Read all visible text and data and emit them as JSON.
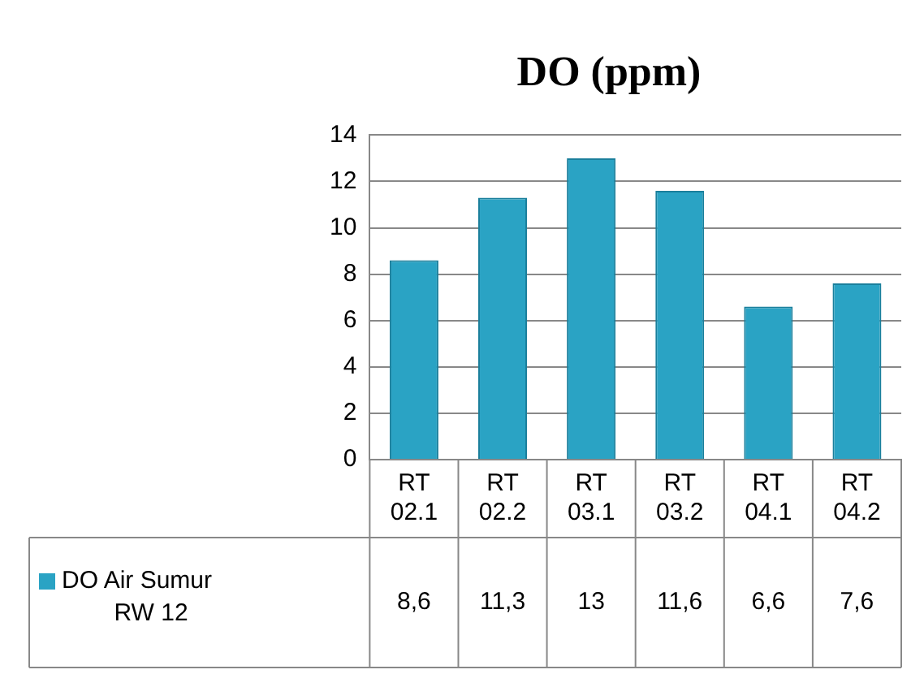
{
  "chart_data": {
    "type": "bar",
    "title": "DO (ppm)",
    "categories": [
      "RT 02.1",
      "RT 02.2",
      "RT 03.1",
      "RT 03.2",
      "RT 04.1",
      "RT 04.2"
    ],
    "series": [
      {
        "name": "DO Air Sumur RW 12",
        "color": "#2aa3c4",
        "values": [
          8.6,
          11.3,
          13,
          11.6,
          6.6,
          7.6
        ],
        "value_labels": [
          "8,6",
          "11,3",
          "13",
          "11,6",
          "6,6",
          "7,6"
        ]
      }
    ],
    "ylim": [
      0,
      14
    ],
    "yticks": [
      0,
      2,
      4,
      6,
      8,
      10,
      12,
      14
    ],
    "grid": "y",
    "legend": "bottom"
  }
}
